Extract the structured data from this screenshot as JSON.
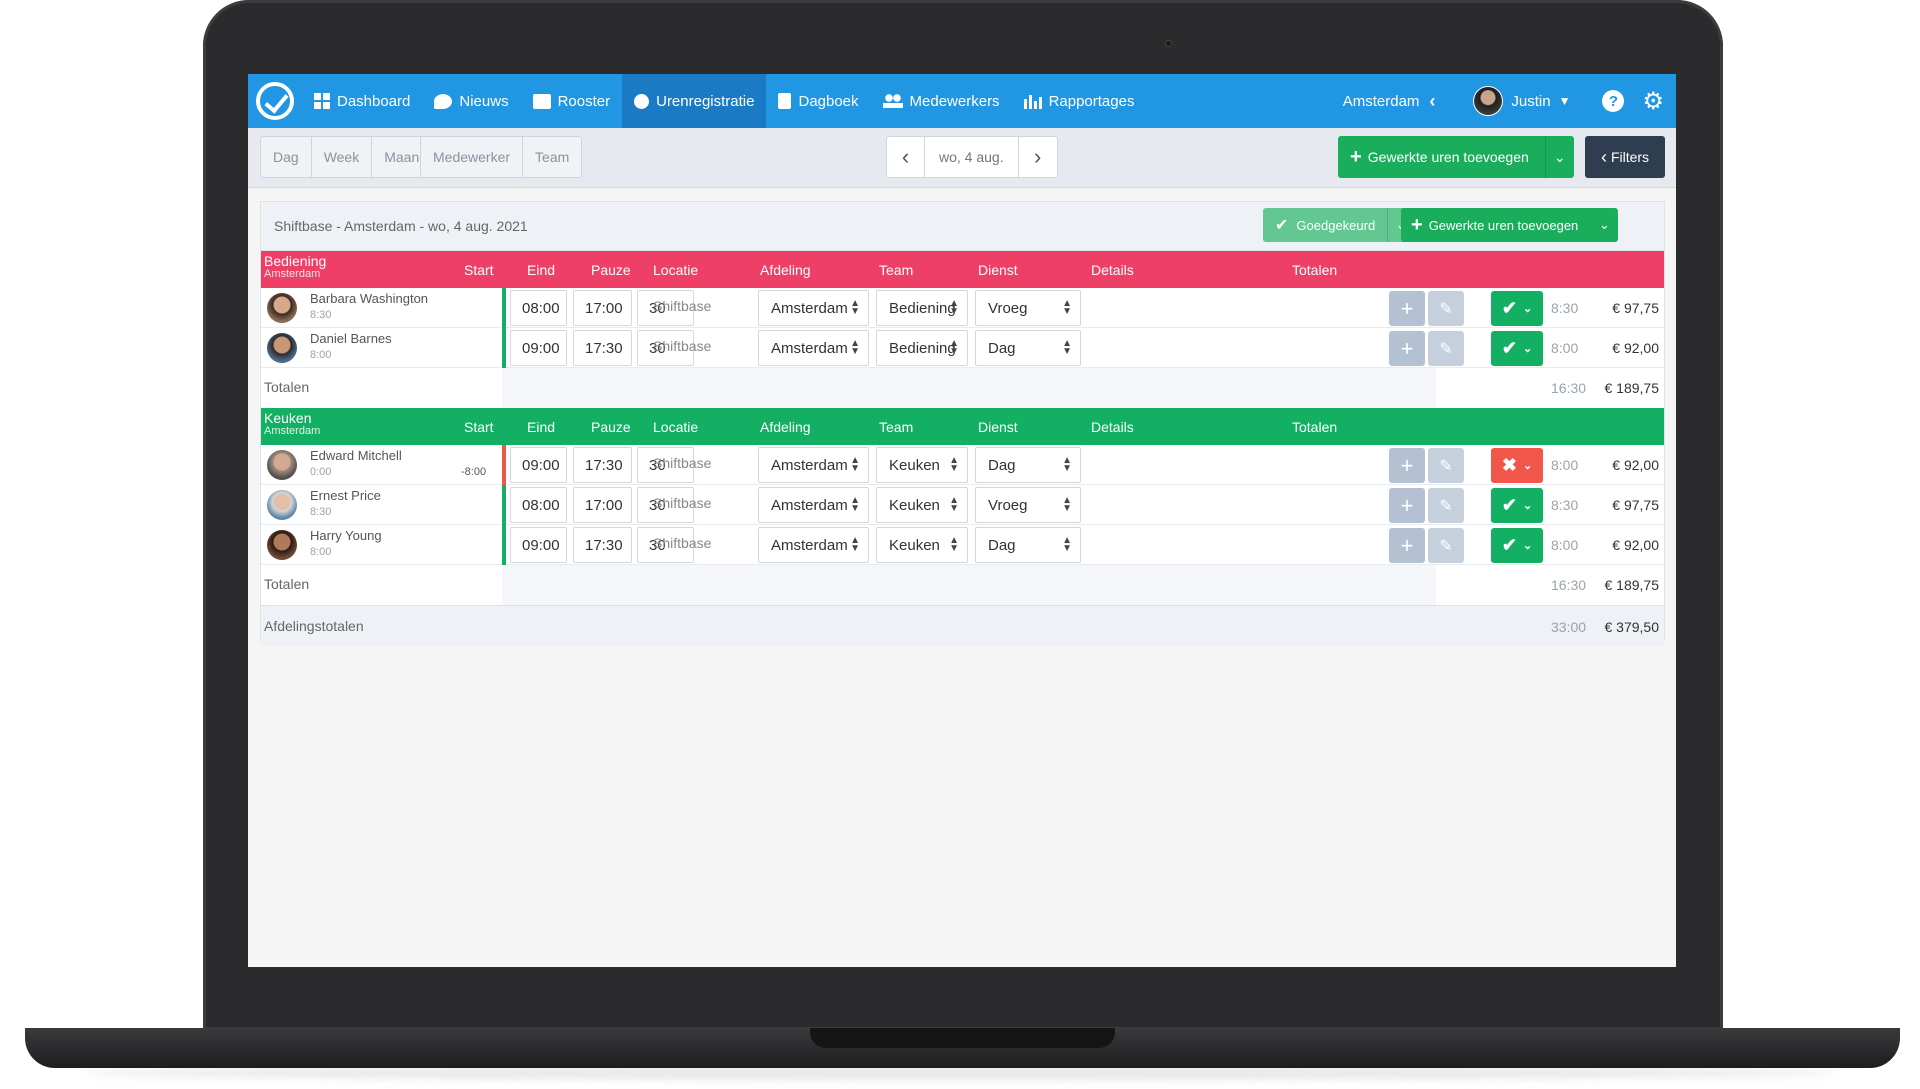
{
  "nav": {
    "items": [
      {
        "label": "Dashboard",
        "icon": "dashboard-icon"
      },
      {
        "label": "Nieuws",
        "icon": "news-icon"
      },
      {
        "label": "Rooster",
        "icon": "schedule-icon"
      },
      {
        "label": "Urenregistratie",
        "icon": "clock-icon"
      },
      {
        "label": "Dagboek",
        "icon": "diary-icon"
      },
      {
        "label": "Medewerkers",
        "icon": "employees-icon"
      },
      {
        "label": "Rapportages",
        "icon": "reports-icon"
      }
    ],
    "location": "Amsterdam",
    "user": "Justin",
    "help": "?"
  },
  "toolbar": {
    "period": [
      "Dag",
      "Week",
      "Maand"
    ],
    "group": [
      "Medewerker",
      "Team"
    ],
    "date": "wo, 4 aug.",
    "add_label": "Gewerkte uren toevoegen",
    "filters_label": "Filters"
  },
  "panel": {
    "title": "Shiftbase - Amsterdam - wo, 4 aug. 2021",
    "approved_label": "Goedgekeurd",
    "add_label": "Gewerkte uren toevoegen"
  },
  "columns": [
    "Start",
    "Eind",
    "Pauze",
    "Locatie",
    "Afdeling",
    "Team",
    "Dienst",
    "Details",
    "Totalen"
  ],
  "sections": [
    {
      "name": "Bediening",
      "sub": "Amsterdam",
      "color": "#ee3f67",
      "rows": [
        {
          "name": "Barbara Washington",
          "hours": "8:30",
          "neg": "",
          "start": "08:00",
          "end": "17:00",
          "pause": "30",
          "location": "Shiftbase",
          "dept": "Amsterdam",
          "team": "Bediening",
          "shift": "Vroeg",
          "status": "ok",
          "total": "8:30",
          "amount": "€ 97,75"
        },
        {
          "name": "Daniel Barnes",
          "hours": "8:00",
          "neg": "",
          "start": "09:00",
          "end": "17:30",
          "pause": "30",
          "location": "Shiftbase",
          "dept": "Amsterdam",
          "team": "Bediening",
          "shift": "Dag",
          "status": "ok",
          "total": "8:00",
          "amount": "€ 92,00"
        }
      ],
      "totals_label": "Totalen",
      "totals_hours": "16:30",
      "totals_amount": "€ 189,75"
    },
    {
      "name": "Keuken",
      "sub": "Amsterdam",
      "color": "#13b063",
      "rows": [
        {
          "name": "Edward Mitchell",
          "hours": "0:00",
          "neg": "-8:00",
          "start": "09:00",
          "end": "17:30",
          "pause": "30",
          "location": "Shiftbase",
          "dept": "Amsterdam",
          "team": "Keuken",
          "shift": "Dag",
          "status": "bad",
          "total": "8:00",
          "amount": "€ 92,00"
        },
        {
          "name": "Ernest Price",
          "hours": "8:30",
          "neg": "",
          "start": "08:00",
          "end": "17:00",
          "pause": "30",
          "location": "Shiftbase",
          "dept": "Amsterdam",
          "team": "Keuken",
          "shift": "Vroeg",
          "status": "ok",
          "total": "8:30",
          "amount": "€ 97,75"
        },
        {
          "name": "Harry Young",
          "hours": "8:00",
          "neg": "",
          "start": "09:00",
          "end": "17:30",
          "pause": "30",
          "location": "Shiftbase",
          "dept": "Amsterdam",
          "team": "Keuken",
          "shift": "Dag",
          "status": "ok",
          "total": "8:00",
          "amount": "€ 92,00"
        }
      ],
      "totals_label": "Totalen",
      "totals_hours": "16:30",
      "totals_amount": "€ 189,75"
    }
  ],
  "dept_totals": {
    "label": "Afdelingstotalen",
    "hours": "33:00",
    "amount": "€ 379,50"
  }
}
